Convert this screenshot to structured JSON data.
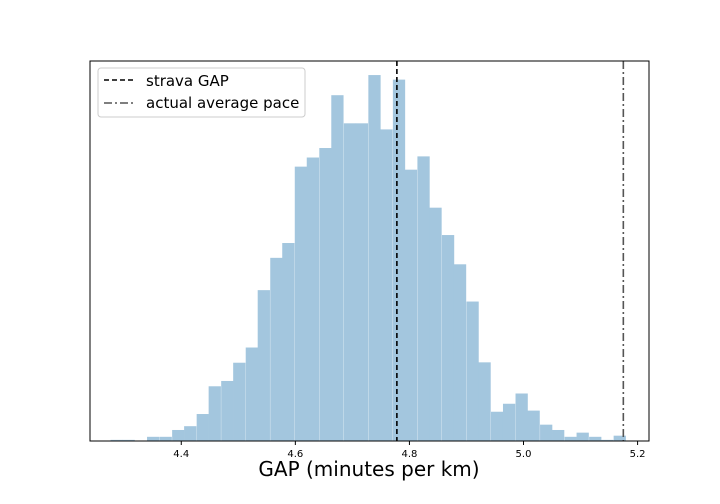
{
  "chart_data": {
    "type": "bar",
    "subtype": "histogram",
    "xlabel": "GAP (minutes per km)",
    "ylabel": "",
    "xlim": [
      4.24,
      5.22
    ],
    "ylim": [
      0,
      1.0
    ],
    "x_ticks": [
      4.4,
      4.6,
      4.8,
      5.0,
      5.2
    ],
    "x_tick_labels": [
      "4.4",
      "4.6",
      "4.8",
      "5.0",
      "5.2"
    ],
    "y_ticks_shown": false,
    "bar_color": "#a3c6de",
    "bin_width": 0.0215,
    "bins_start": [
      4.276,
      4.297,
      4.319,
      4.34,
      4.362,
      4.384,
      4.405,
      4.427,
      4.448,
      4.47,
      4.491,
      4.513,
      4.534,
      4.556,
      4.577,
      4.599,
      4.62,
      4.642,
      4.663,
      4.685,
      4.706,
      4.728,
      4.749,
      4.771,
      4.792,
      4.814,
      4.835,
      4.857,
      4.878,
      4.9,
      4.921,
      4.943,
      4.964,
      4.986,
      5.007,
      5.029,
      5.05,
      5.072,
      5.093,
      5.115,
      5.136,
      5.158
    ],
    "counts": [
      0.003,
      0.003,
      0.0,
      0.011,
      0.011,
      0.029,
      0.039,
      0.071,
      0.144,
      0.158,
      0.206,
      0.246,
      0.397,
      0.482,
      0.521,
      0.722,
      0.746,
      0.771,
      0.91,
      0.836,
      0.836,
      0.963,
      0.82,
      0.951,
      0.714,
      0.749,
      0.614,
      0.542,
      0.465,
      0.367,
      0.207,
      0.077,
      0.098,
      0.125,
      0.08,
      0.043,
      0.029,
      0.011,
      0.022,
      0.011,
      0.003,
      0.014
    ],
    "reference_lines": [
      {
        "name": "strava GAP",
        "x": 4.778,
        "style": "dashed",
        "color": "#000000"
      },
      {
        "name": "actual average pace",
        "x": 5.175,
        "style": "dashdot",
        "color": "#555555"
      }
    ],
    "legend": {
      "placement": "top-left",
      "entries": [
        "strava GAP",
        "actual average pace"
      ]
    },
    "grid": false
  }
}
